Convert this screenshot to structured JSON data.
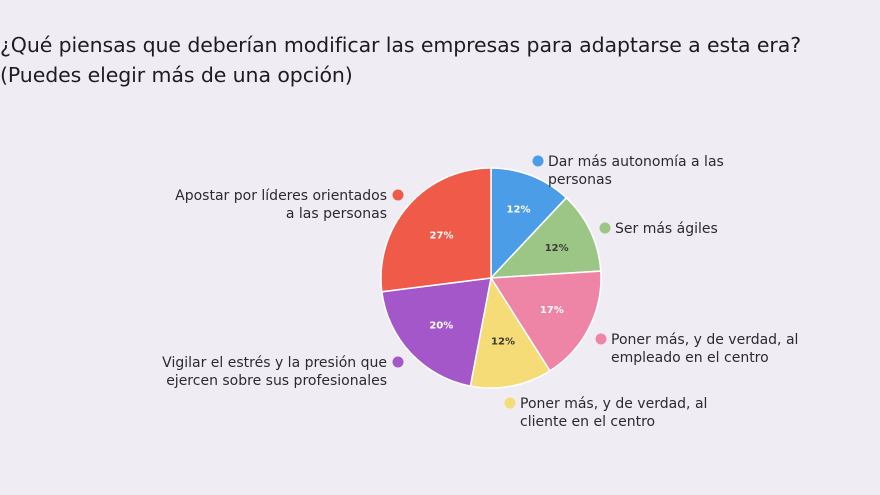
{
  "title_line1": "¿Qué piensas que deberían modificar las empresas para adaptarse a esta era?",
  "title_line2": "(Puedes elegir más de una opción)",
  "chart_data": {
    "type": "pie",
    "slices": [
      {
        "label_lines": [
          "Dar más autonomía a las",
          "personas"
        ],
        "value": 12,
        "value_label": "12%",
        "color": "#4a9de6"
      },
      {
        "label_lines": [
          "Ser más ágiles"
        ],
        "value": 12,
        "value_label": "12%",
        "color": "#9cc686"
      },
      {
        "label_lines": [
          "Poner más, y de verdad, al",
          "empleado en el centro"
        ],
        "value": 17,
        "value_label": "17%",
        "color": "#ee85a7"
      },
      {
        "label_lines": [
          "Poner más, y de verdad, al",
          "cliente en el centro"
        ],
        "value": 12,
        "value_label": "12%",
        "color": "#f5dc77"
      },
      {
        "label_lines": [
          "Vigilar el estrés y la presión que",
          "ejercen sobre sus profesionales"
        ],
        "value": 20,
        "value_label": "20%",
        "color": "#a357c9"
      },
      {
        "label_lines": [
          "Apostar por líderes orientados",
          "a las personas"
        ],
        "value": 27,
        "value_label": "27%",
        "color": "#f05a48"
      }
    ]
  }
}
